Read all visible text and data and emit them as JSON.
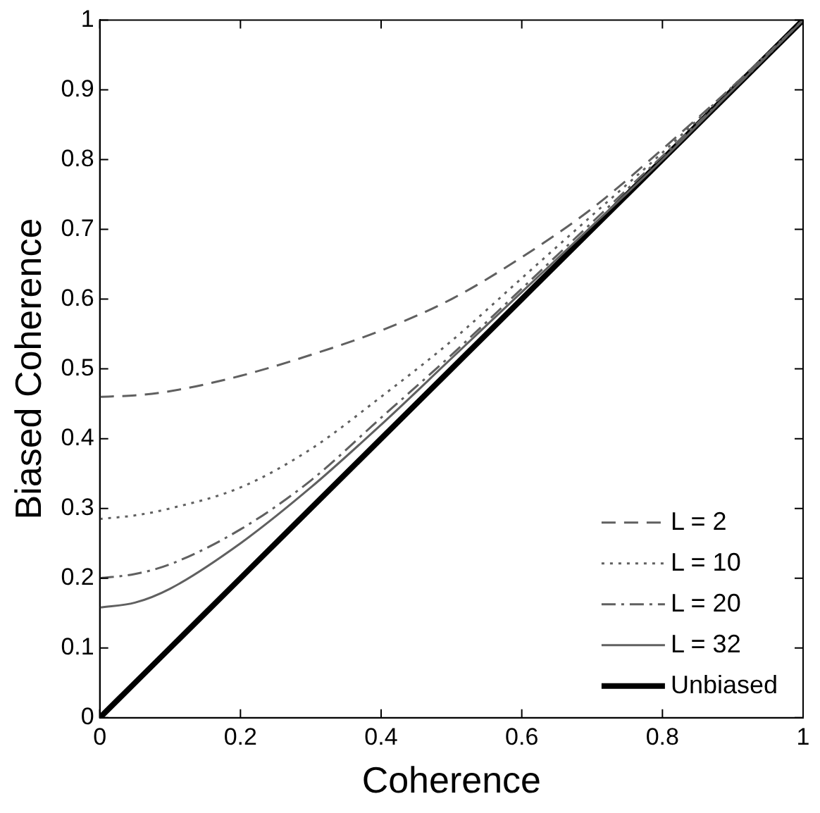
{
  "chart_data": {
    "type": "line",
    "xlabel": "Coherence",
    "ylabel": "Biased Coherence",
    "x": [
      0,
      0.05,
      0.1,
      0.2,
      0.3,
      0.4,
      0.5,
      0.6,
      0.7,
      0.8,
      0.9,
      1
    ],
    "series": [
      {
        "name": "L = 2",
        "color": "#606060",
        "line_style": "dashed",
        "values": [
          0.46,
          0.462,
          0.468,
          0.49,
          0.52,
          0.555,
          0.6,
          0.66,
          0.73,
          0.815,
          0.905,
          1
        ]
      },
      {
        "name": "L = 10",
        "color": "#606060",
        "line_style": "dotted",
        "values": [
          0.285,
          0.29,
          0.3,
          0.33,
          0.385,
          0.46,
          0.54,
          0.63,
          0.72,
          0.81,
          0.905,
          1
        ]
      },
      {
        "name": "L = 20",
        "color": "#606060",
        "line_style": "dashdot",
        "values": [
          0.2,
          0.206,
          0.22,
          0.27,
          0.34,
          0.43,
          0.52,
          0.615,
          0.71,
          0.805,
          0.9,
          1
        ]
      },
      {
        "name": "L = 32",
        "color": "#606060",
        "line_style": "solid",
        "values": [
          0.158,
          0.165,
          0.185,
          0.25,
          0.33,
          0.42,
          0.515,
          0.61,
          0.705,
          0.8,
          0.9,
          1
        ]
      },
      {
        "name": "Unbiased",
        "color": "#000000",
        "line_style": "solid",
        "values": [
          0,
          0.05,
          0.1,
          0.2,
          0.3,
          0.4,
          0.5,
          0.6,
          0.7,
          0.8,
          0.9,
          1
        ]
      }
    ],
    "xlim": [
      0,
      1
    ],
    "xticks": [
      0,
      0.2,
      0.4,
      0.6,
      0.8,
      1
    ],
    "ylim": [
      0,
      1
    ],
    "yticks": [
      0,
      0.1,
      0.2,
      0.3,
      0.4,
      0.5,
      0.6,
      0.7,
      0.8,
      0.9,
      1
    ],
    "grid": false,
    "legend": "bottom right",
    "marker": "none"
  }
}
